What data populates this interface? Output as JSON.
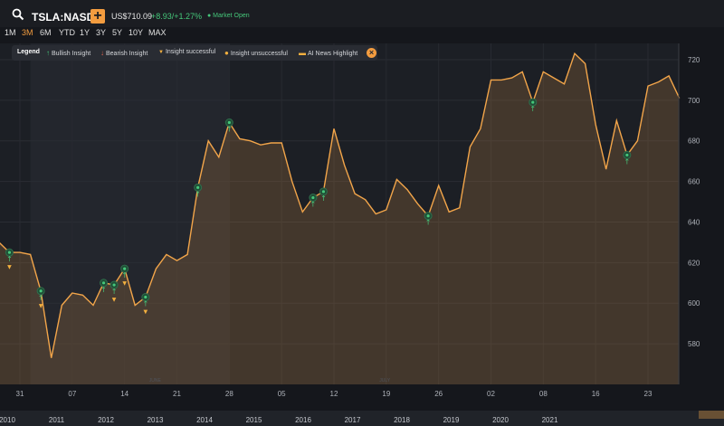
{
  "header": {
    "ticker": "TSLA:NASD",
    "add_label": "+",
    "price": "US$710.09",
    "change": "+8.93/+1.27%",
    "market_status": "● Market Open"
  },
  "ranges": [
    {
      "label": "1M",
      "active": false
    },
    {
      "label": "3M",
      "active": true
    },
    {
      "label": "6M",
      "active": false
    },
    {
      "label": "YTD",
      "active": false
    },
    {
      "label": "1Y",
      "active": false
    },
    {
      "label": "3Y",
      "active": false
    },
    {
      "label": "5Y",
      "active": false
    },
    {
      "label": "10Y",
      "active": false
    },
    {
      "label": "MAX",
      "active": false
    }
  ],
  "legend": {
    "title": "Legend",
    "items": [
      {
        "label": "Bullish Insight",
        "icon": "up-arrow-icon",
        "glyph": "↑",
        "color": "#45c77a"
      },
      {
        "label": "Bearish Insight",
        "icon": "down-arrow-icon",
        "glyph": "↓",
        "color": "#e0644f"
      },
      {
        "label": "Insight successful",
        "icon": "trophy-icon",
        "glyph": "▼",
        "color": "#f3b03f"
      },
      {
        "label": "Insight unsuccessful",
        "icon": "unsuccessful-icon",
        "glyph": "●",
        "color": "#f3b03f"
      },
      {
        "label": "AI News Highlight",
        "icon": "news-icon",
        "glyph": "▬",
        "color": "#f3b03f"
      }
    ],
    "close_icon": "close-icon"
  },
  "colors": {
    "line": "#f2a54a",
    "area": "#4a3a2a",
    "marker": "#45c77a",
    "success": "#f3b03f"
  },
  "chart_data": {
    "type": "area",
    "ylim": [
      560,
      728
    ],
    "y_ticks": [
      580,
      600,
      620,
      640,
      660,
      680,
      700,
      720
    ],
    "x_index_range": [
      -2,
      60
    ],
    "x_ticks": [
      {
        "i": 0,
        "label": "31"
      },
      {
        "i": 5,
        "label": "07"
      },
      {
        "i": 10,
        "label": "14"
      },
      {
        "i": 15,
        "label": "21"
      },
      {
        "i": 20,
        "label": "28"
      },
      {
        "i": 25,
        "label": "05"
      },
      {
        "i": 30,
        "label": "12"
      },
      {
        "i": 35,
        "label": "19"
      },
      {
        "i": 40,
        "label": "26"
      },
      {
        "i": 45,
        "label": "02"
      },
      {
        "i": 50,
        "label": "08"
      },
      {
        "i": 55,
        "label": "16"
      },
      {
        "i": 60,
        "label": "23"
      }
    ],
    "month_labels": [
      {
        "i": 12,
        "label": "JUNE"
      },
      {
        "i": 34,
        "label": "JULY"
      }
    ],
    "series": [
      {
        "points": [
          [
            -2,
            630
          ],
          [
            -1,
            625
          ],
          [
            0,
            625
          ],
          [
            1,
            624
          ],
          [
            2,
            606
          ],
          [
            3,
            573
          ],
          [
            4,
            599
          ],
          [
            5,
            605
          ],
          [
            6,
            604
          ],
          [
            7,
            599
          ],
          [
            8,
            610
          ],
          [
            9,
            609
          ],
          [
            10,
            617
          ],
          [
            11,
            599
          ],
          [
            12,
            603
          ],
          [
            13,
            617
          ],
          [
            14,
            624
          ],
          [
            15,
            621
          ],
          [
            16,
            624
          ],
          [
            17,
            657
          ],
          [
            18,
            680
          ],
          [
            19,
            672
          ],
          [
            20,
            689
          ],
          [
            21,
            681
          ],
          [
            22,
            680
          ],
          [
            23,
            678
          ],
          [
            24,
            679
          ],
          [
            25,
            679
          ],
          [
            26,
            660
          ],
          [
            27,
            645
          ],
          [
            28,
            652
          ],
          [
            29,
            655
          ],
          [
            30,
            686
          ],
          [
            31,
            668
          ],
          [
            32,
            654
          ],
          [
            33,
            651
          ],
          [
            34,
            644
          ],
          [
            35,
            646
          ],
          [
            36,
            661
          ],
          [
            37,
            656
          ],
          [
            38,
            649
          ],
          [
            39,
            643
          ],
          [
            40,
            658
          ],
          [
            41,
            645
          ],
          [
            42,
            647
          ],
          [
            43,
            677
          ],
          [
            44,
            686
          ],
          [
            45,
            710
          ],
          [
            46,
            710
          ],
          [
            47,
            711
          ],
          [
            48,
            714
          ],
          [
            49,
            699
          ],
          [
            50,
            714
          ],
          [
            51,
            711
          ],
          [
            52,
            708
          ],
          [
            53,
            723
          ],
          [
            54,
            718
          ],
          [
            55,
            688
          ],
          [
            56,
            666
          ],
          [
            57,
            690
          ],
          [
            58,
            673
          ],
          [
            59,
            680
          ],
          [
            60,
            707
          ],
          [
            61,
            709
          ],
          [
            62,
            712
          ],
          [
            63,
            701
          ]
        ]
      }
    ],
    "insights": [
      {
        "i": -1,
        "value": 625,
        "success": true
      },
      {
        "i": 2,
        "value": 606,
        "success": true
      },
      {
        "i": 8,
        "value": 610,
        "success": false
      },
      {
        "i": 9,
        "value": 609,
        "success": true
      },
      {
        "i": 10,
        "value": 617,
        "success": true
      },
      {
        "i": 12,
        "value": 603,
        "success": true
      },
      {
        "i": 17,
        "value": 657,
        "success": false
      },
      {
        "i": 20,
        "value": 689,
        "success": false
      },
      {
        "i": 28,
        "value": 652,
        "success": false
      },
      {
        "i": 29,
        "value": 655,
        "success": false
      },
      {
        "i": 39,
        "value": 643,
        "success": false
      },
      {
        "i": 49,
        "value": 699,
        "success": false
      },
      {
        "i": 58,
        "value": 673,
        "success": false
      }
    ],
    "navigator_years": [
      "2010",
      "2011",
      "2012",
      "2013",
      "2014",
      "2015",
      "2016",
      "2017",
      "2018",
      "2019",
      "2020",
      "2021"
    ]
  }
}
